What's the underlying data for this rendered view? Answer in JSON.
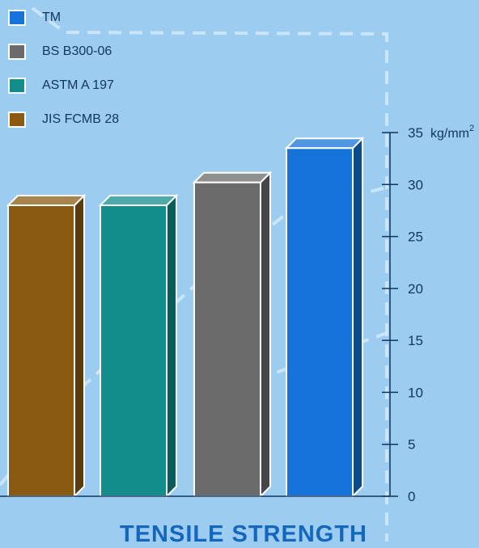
{
  "chart_data": {
    "type": "bar",
    "title": "TENSILE STRENGTH",
    "unit": "kg/mm",
    "unit_exponent": "2",
    "ylim": [
      0,
      35
    ],
    "yticks": [
      "0",
      "5",
      "10",
      "15",
      "20",
      "25",
      "30",
      "35"
    ],
    "grid": false,
    "legend_placement": "top-left",
    "categories": [
      "JIS FCMB 28",
      "ASTM A 197",
      "BS B300-06",
      "TM"
    ],
    "values": [
      28,
      28,
      30.2,
      33.5
    ],
    "colors": [
      "#8a5a12",
      "#138c8c",
      "#6b6b6b",
      "#1673d9"
    ]
  },
  "legend": [
    {
      "label": "TM",
      "color": "#1673d9"
    },
    {
      "label": "BS B300-06",
      "color": "#6b6b6b"
    },
    {
      "label": "ASTM A 197",
      "color": "#138c8c"
    },
    {
      "label": "JIS FCMB 28",
      "color": "#8a5a12"
    }
  ]
}
